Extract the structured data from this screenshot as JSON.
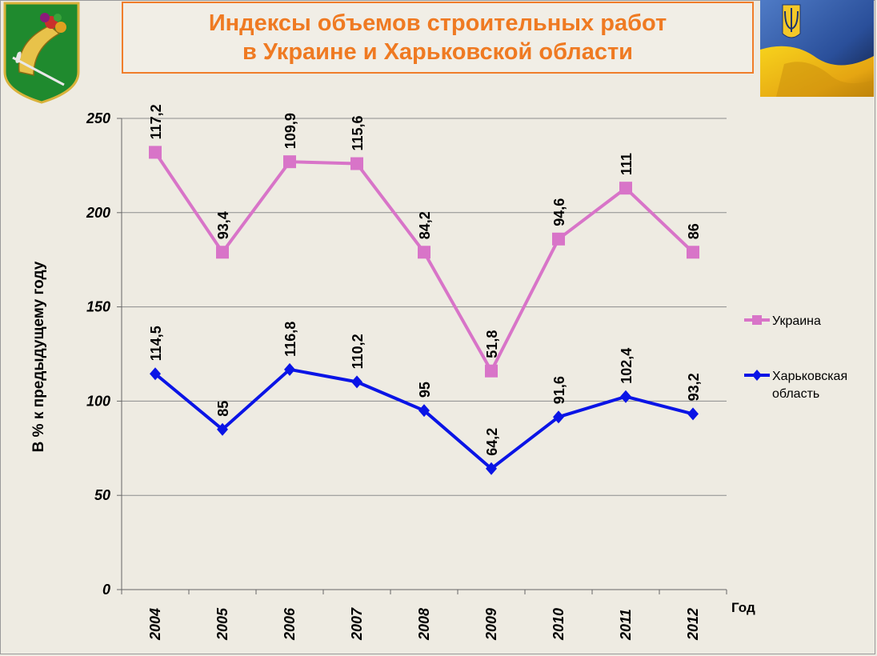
{
  "title": {
    "line1": "Индексы объемов строительных работ",
    "line2": "в Украине и Харьковской области"
  },
  "colors": {
    "title": "#ef7a22",
    "ukraine": "#d874c8",
    "kharkiv": "#0a14e6",
    "grid": "#8c8c8c"
  },
  "chart_data": {
    "type": "line",
    "categories": [
      "2004",
      "2005",
      "2006",
      "2007",
      "2008",
      "2009",
      "2010",
      "2011",
      "2012"
    ],
    "xlabel": "Год",
    "ylabel": "В % к предыдущему году",
    "ylim": [
      0,
      250
    ],
    "yticks": [
      0,
      50,
      100,
      150,
      200,
      250
    ],
    "grid": true,
    "legend_position": "right",
    "series": [
      {
        "name": "Украина",
        "marker": "square",
        "plotted": [
          232,
          179,
          227,
          226,
          179,
          116,
          186,
          213,
          179
        ],
        "labels": [
          "117,2",
          "93,4",
          "109,9",
          "115,6",
          "84,2",
          "51,8",
          "94,6",
          "111",
          "86"
        ]
      },
      {
        "name": "Харьковская область",
        "legend_lines": [
          "Харьковская",
          "область"
        ],
        "marker": "diamond",
        "plotted": [
          114.5,
          85,
          116.8,
          110.2,
          95,
          64.2,
          91.6,
          102.4,
          93.2
        ],
        "labels": [
          "114,5",
          "85",
          "116,8",
          "110,2",
          "95",
          "64,2",
          "91,6",
          "102,4",
          "93,2"
        ]
      }
    ]
  }
}
